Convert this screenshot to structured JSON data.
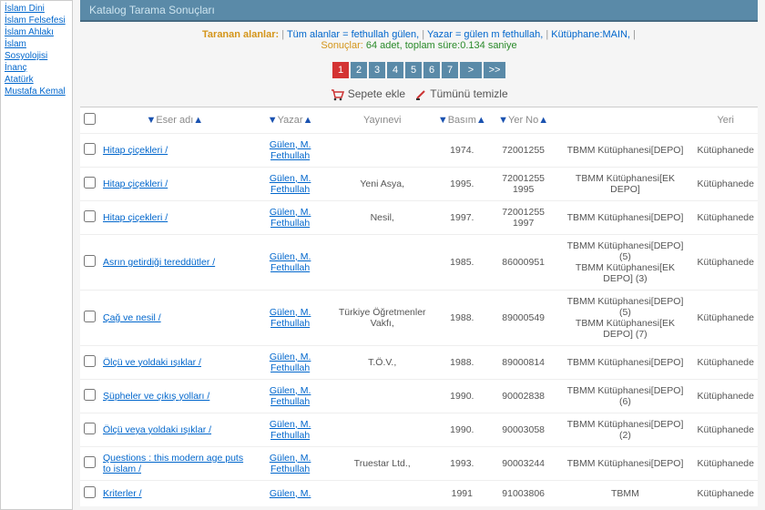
{
  "sidebar": {
    "links": [
      "İslam Dini",
      "İslam Felsefesi",
      "İslam Ahlakı",
      "İslam Sosyolojisi",
      "İnanç",
      "Atatürk Mustafa Kemal"
    ]
  },
  "header": {
    "title": "Katalog Tarama Sonuçları"
  },
  "search": {
    "label": "Taranan alanlar: ",
    "parts": [
      {
        "text": "Tüm alanlar = fethullah gülen,",
        "sep": "|"
      },
      {
        "text": "Yazar = gülen m fethullah,",
        "sep": "|"
      },
      {
        "text": "Kütüphane:MAIN,",
        "sep": "|"
      }
    ],
    "results_label": "Sonuçlar: ",
    "results_value": "64 adet, toplam süre:0.134 saniye"
  },
  "pager": {
    "pages": [
      "1",
      "2",
      "3",
      "4",
      "5",
      "6",
      "7"
    ],
    "active": 0,
    "next": ">",
    "last": ">>"
  },
  "actions": {
    "add_cart": "Sepete ekle",
    "clear_all": "Tümünü temizle"
  },
  "columns": {
    "title": "Eser adı",
    "author": "Yazar",
    "publisher": "Yayınevi",
    "edition": "Basım",
    "callno": "Yer No",
    "library": "",
    "location": "Yeri"
  },
  "rows": [
    {
      "title": "Hitap çiçekleri /",
      "author": "Gülen, M. Fethullah",
      "publisher": "",
      "year": "1974.",
      "callno": "72001255",
      "lib": "TBMM Kütüphanesi[DEPO]",
      "loc": "Kütüphanede"
    },
    {
      "title": "Hitap çiçekleri /",
      "author": "Gülen, M. Fethullah",
      "publisher": "Yeni Asya,",
      "year": "1995.",
      "callno": "72001255 1995",
      "lib": "TBMM Kütüphanesi[EK DEPO]",
      "loc": "Kütüphanede"
    },
    {
      "title": "Hitap çiçekleri /",
      "author": "Gülen, M. Fethullah",
      "publisher": "Nesil,",
      "year": "1997.",
      "callno": "72001255 1997",
      "lib": "TBMM Kütüphanesi[DEPO]",
      "loc": "Kütüphanede"
    },
    {
      "title": "Asrın getirdiği tereddütler /",
      "author": "Gülen, M. Fethullah",
      "publisher": "",
      "year": "1985.",
      "callno": "86000951",
      "lib": "TBMM Kütüphanesi[DEPO] (5)\nTBMM Kütüphanesi[EK DEPO] (3)",
      "loc": "Kütüphanede"
    },
    {
      "title": "Çağ ve nesil /",
      "author": "Gülen, M. Fethullah",
      "publisher": "Türkiye Öğretmenler Vakfı,",
      "year": "1988.",
      "callno": "89000549",
      "lib": "TBMM Kütüphanesi[DEPO] (5)\nTBMM Kütüphanesi[EK DEPO] (7)",
      "loc": "Kütüphanede"
    },
    {
      "title": "Ölçü ve yoldaki ışıklar /",
      "author": "Gülen, M. Fethullah",
      "publisher": "T.Ö.V.,",
      "year": "1988.",
      "callno": "89000814",
      "lib": "TBMM Kütüphanesi[DEPO]",
      "loc": "Kütüphanede"
    },
    {
      "title": "Şüpheler ve çıkış yolları /",
      "author": "Gülen, M. Fethullah",
      "publisher": "",
      "year": "1990.",
      "callno": "90002838",
      "lib": "TBMM Kütüphanesi[DEPO] (6)",
      "loc": "Kütüphanede"
    },
    {
      "title": "Ölçü veya yoldaki ışıklar /",
      "author": "Gülen, M. Fethullah",
      "publisher": "",
      "year": "1990.",
      "callno": "90003058",
      "lib": "TBMM Kütüphanesi[DEPO] (2)",
      "loc": "Kütüphanede"
    },
    {
      "title": "Questions : this modern age puts to islam /",
      "author": "Gülen, M. Fethullah",
      "publisher": "Truestar Ltd.,",
      "year": "1993.",
      "callno": "90003244",
      "lib": "TBMM Kütüphanesi[DEPO]",
      "loc": "Kütüphanede"
    },
    {
      "title": "Kriterler /",
      "author": "Gülen, M.",
      "publisher": "",
      "year": "1991",
      "callno": "91003806",
      "lib": "TBMM",
      "loc": "Kütüphanede"
    }
  ]
}
